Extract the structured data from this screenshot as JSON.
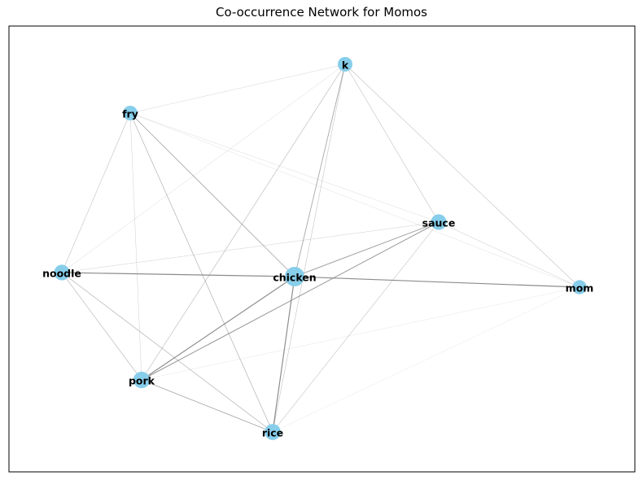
{
  "title": "Co-occurrence Network for Momos",
  "colors": {
    "node": "#87ceeb",
    "edge": "#808080",
    "label": "#000000",
    "frame": "#000000"
  },
  "nodes": [
    {
      "id": "k",
      "label": "k",
      "weight": 1.0
    },
    {
      "id": "fry",
      "label": "fry",
      "weight": 1.0
    },
    {
      "id": "sauce",
      "label": "sauce",
      "weight": 1.2
    },
    {
      "id": "noodle",
      "label": "noodle",
      "weight": 1.2
    },
    {
      "id": "chicken",
      "label": "chicken",
      "weight": 2.0
    },
    {
      "id": "mom",
      "label": "mom",
      "weight": 0.9
    },
    {
      "id": "pork",
      "label": "pork",
      "weight": 1.4
    },
    {
      "id": "rice",
      "label": "rice",
      "weight": 1.3
    }
  ],
  "edges": [
    {
      "source": "k",
      "target": "fry",
      "weight": 0.3
    },
    {
      "source": "k",
      "target": "noodle",
      "weight": 0.25
    },
    {
      "source": "k",
      "target": "sauce",
      "weight": 0.5
    },
    {
      "source": "k",
      "target": "mom",
      "weight": 0.5
    },
    {
      "source": "k",
      "target": "chicken",
      "weight": 0.9
    },
    {
      "source": "k",
      "target": "pork",
      "weight": 0.6
    },
    {
      "source": "k",
      "target": "rice",
      "weight": 0.5
    },
    {
      "source": "fry",
      "target": "noodle",
      "weight": 0.5
    },
    {
      "source": "fry",
      "target": "pork",
      "weight": 0.35
    },
    {
      "source": "fry",
      "target": "rice",
      "weight": 0.7
    },
    {
      "source": "fry",
      "target": "chicken",
      "weight": 0.9
    },
    {
      "source": "fry",
      "target": "sauce",
      "weight": 0.25
    },
    {
      "source": "fry",
      "target": "mom",
      "weight": 0.2
    },
    {
      "source": "noodle",
      "target": "chicken",
      "weight": 1.3
    },
    {
      "source": "noodle",
      "target": "sauce",
      "weight": 0.35
    },
    {
      "source": "noodle",
      "target": "pork",
      "weight": 0.6
    },
    {
      "source": "noodle",
      "target": "rice",
      "weight": 0.7
    },
    {
      "source": "sauce",
      "target": "chicken",
      "weight": 1.0
    },
    {
      "source": "sauce",
      "target": "pork",
      "weight": 1.1
    },
    {
      "source": "sauce",
      "target": "rice",
      "weight": 0.5
    },
    {
      "source": "sauce",
      "target": "mom",
      "weight": 0.4
    },
    {
      "source": "chicken",
      "target": "mom",
      "weight": 1.3
    },
    {
      "source": "chicken",
      "target": "pork",
      "weight": 1.3
    },
    {
      "source": "chicken",
      "target": "rice",
      "weight": 1.3
    },
    {
      "source": "pork",
      "target": "rice",
      "weight": 0.9
    },
    {
      "source": "pork",
      "target": "mom",
      "weight": 0.15
    },
    {
      "source": "rice",
      "target": "mom",
      "weight": 0.12
    }
  ]
}
